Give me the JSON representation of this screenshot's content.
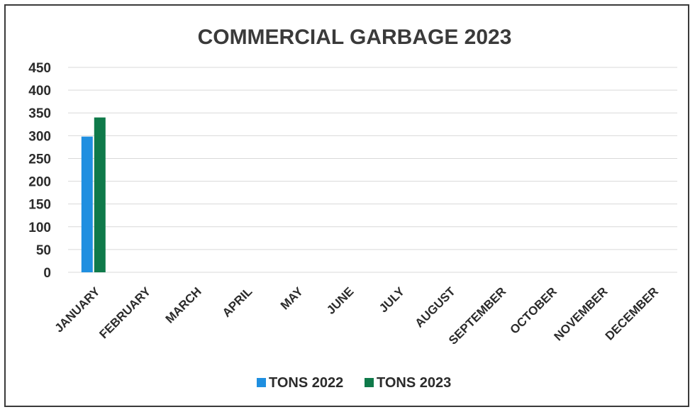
{
  "chart_data": {
    "type": "bar",
    "title": "COMMERCIAL GARBAGE 2023",
    "xlabel": "",
    "ylabel": "",
    "categories": [
      "JANUARY",
      "FEBRUARY",
      "MARCH",
      "APRIL",
      "MAY",
      "JUNE",
      "JULY",
      "AUGUST",
      "SEPTEMBER",
      "OCTOBER",
      "NOVEMBER",
      "DECEMBER"
    ],
    "series": [
      {
        "name": "TONS 2022",
        "color": "#1f8fe0",
        "values": [
          298,
          null,
          null,
          null,
          null,
          null,
          null,
          null,
          null,
          null,
          null,
          null
        ]
      },
      {
        "name": "TONS 2023",
        "color": "#0f7a4a",
        "values": [
          340,
          null,
          null,
          null,
          null,
          null,
          null,
          null,
          null,
          null,
          null,
          null
        ]
      }
    ],
    "ylim": [
      0,
      450
    ],
    "yticks": [
      0,
      50,
      100,
      150,
      200,
      250,
      300,
      350,
      400,
      450
    ],
    "grid": true,
    "legend_position": "bottom"
  }
}
